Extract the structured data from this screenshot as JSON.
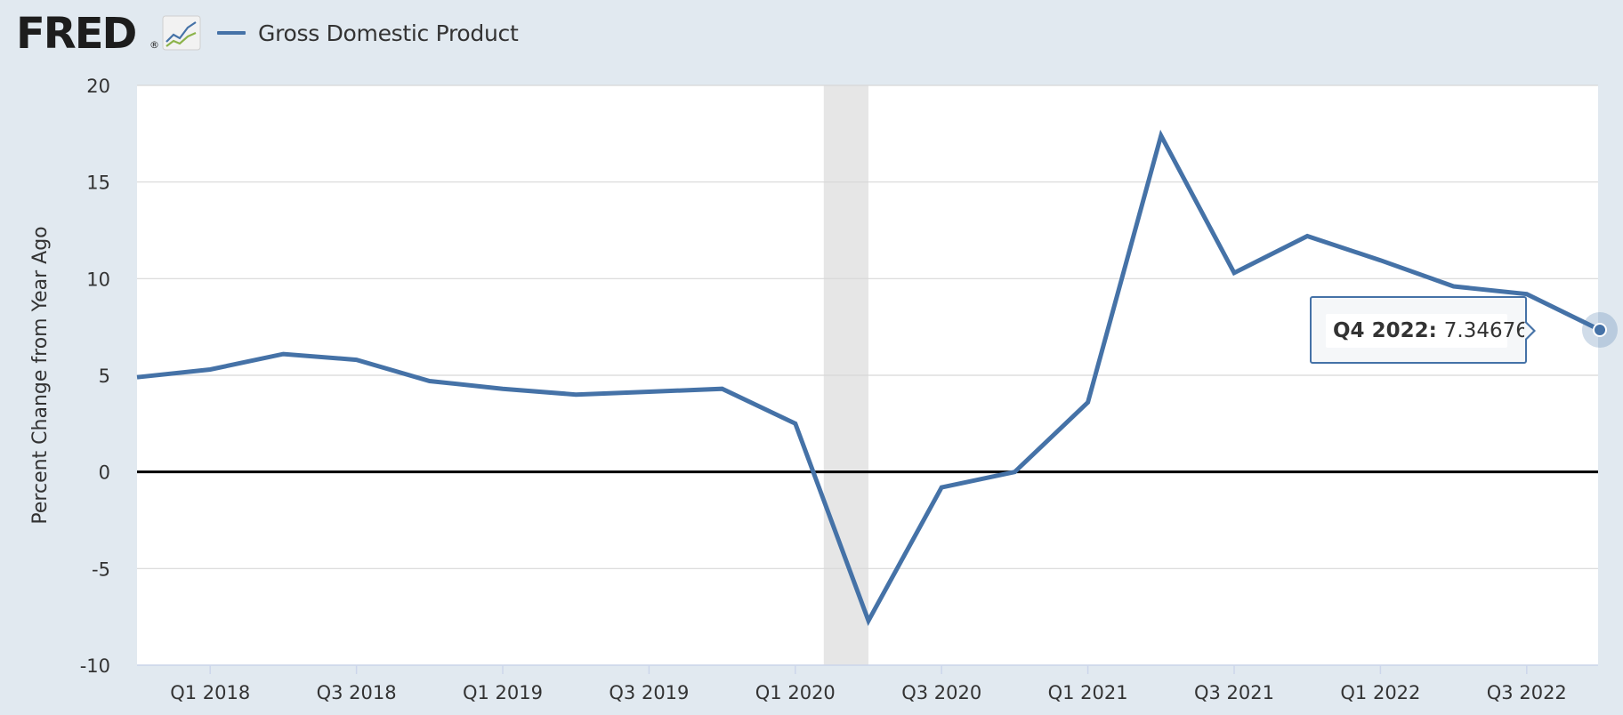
{
  "header": {
    "logo_text": "FRED",
    "logo_mark": "®",
    "logo_icon": "line-graph-icon",
    "legend_label": "Gross Domestic Product"
  },
  "colors": {
    "page_bg": "#e1e9f0",
    "plot_bg": "#ffffff",
    "series": "#4572a7",
    "recession_band": "#e6e6e6",
    "gridline": "#d8d8d8",
    "zero_line": "#000000"
  },
  "chart_data": {
    "type": "line",
    "xlabel": "",
    "ylabel": "Percent Change from Year Ago",
    "ylim": [
      -10,
      20
    ],
    "yticks": [
      -10,
      -5,
      0,
      5,
      10,
      15,
      20
    ],
    "grid": true,
    "legend_placement": "top-left",
    "x": [
      "Q4 2017",
      "Q1 2018",
      "Q2 2018",
      "Q3 2018",
      "Q4 2018",
      "Q1 2019",
      "Q2 2019",
      "Q3 2019",
      "Q4 2019",
      "Q1 2020",
      "Q2 2020",
      "Q3 2020",
      "Q4 2020",
      "Q1 2021",
      "Q2 2021",
      "Q3 2021",
      "Q4 2021",
      "Q1 2022",
      "Q2 2022",
      "Q3 2022",
      "Q4 2022"
    ],
    "xticks": [
      "Q1 2018",
      "Q3 2018",
      "Q1 2019",
      "Q3 2019",
      "Q1 2020",
      "Q3 2020",
      "Q1 2021",
      "Q3 2021",
      "Q1 2022",
      "Q3 2022"
    ],
    "series": [
      {
        "name": "Gross Domestic Product",
        "values": [
          4.9,
          5.3,
          6.1,
          5.8,
          4.7,
          4.3,
          4.0,
          4.15,
          4.3,
          2.5,
          -7.7,
          -0.8,
          0.0,
          3.6,
          17.4,
          10.3,
          12.2,
          10.95,
          9.6,
          9.2,
          7.34676
        ]
      }
    ],
    "recessions": [
      {
        "start": "Q1 2020",
        "end": "Q2 2020"
      }
    ],
    "tooltip": {
      "label": "Q4 2022:",
      "value": "7.34676"
    }
  }
}
